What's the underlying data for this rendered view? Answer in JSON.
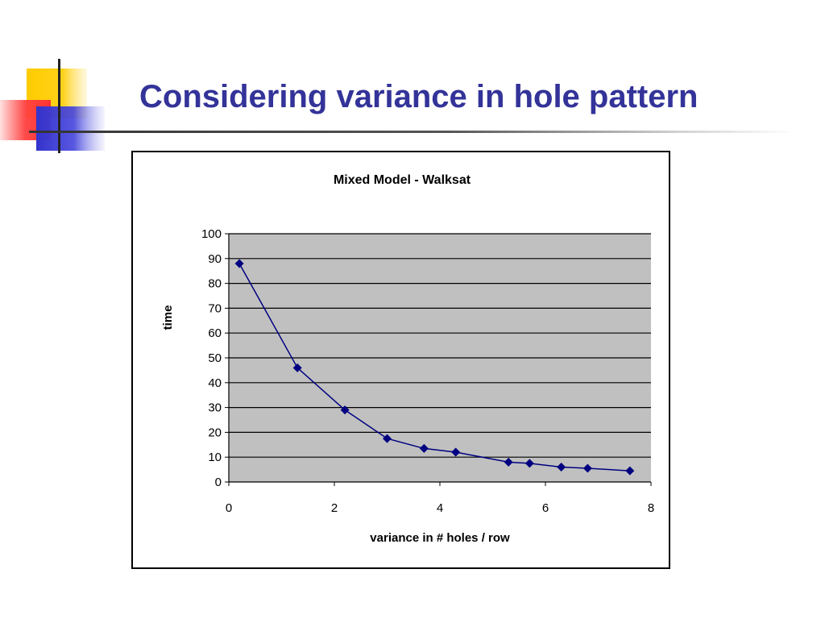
{
  "slide": {
    "title": "Considering variance in hole pattern"
  },
  "colors": {
    "title": "#333399",
    "plot_background": "#C0C0C0",
    "series_line": "#000080",
    "logo_yellow": "#FFCC00",
    "logo_red": "#FF3333",
    "logo_blue": "#3333CC"
  },
  "chart_data": {
    "type": "scatter",
    "title": "Mixed Model - Walksat",
    "xlabel": "variance in # holes / row",
    "ylabel": "time",
    "xlim": [
      0,
      8
    ],
    "ylim": [
      0,
      100
    ],
    "xticks": [
      0,
      2,
      4,
      6,
      8
    ],
    "yticks": [
      0,
      10,
      20,
      30,
      40,
      50,
      60,
      70,
      80,
      90,
      100
    ],
    "grid": "horizontal",
    "legend": "none",
    "marker": "diamond",
    "series": [
      {
        "x": [
          0.2,
          1.3,
          2.2,
          3.0,
          3.7,
          4.3,
          5.3,
          5.7,
          6.3,
          6.8,
          7.6
        ],
        "values": [
          88,
          46,
          29,
          17.5,
          13.5,
          12,
          8,
          7.5,
          6,
          5.5,
          4.5
        ]
      }
    ]
  }
}
